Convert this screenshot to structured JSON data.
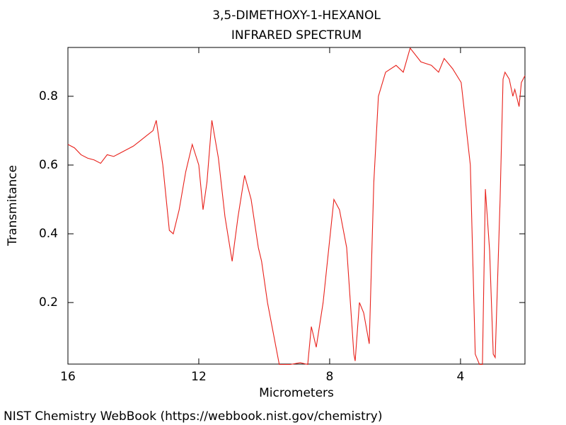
{
  "chart_data": {
    "type": "line",
    "title": "3,5-DIMETHOXY-1-HEXANOL",
    "subtitle": "INFRARED SPECTRUM",
    "x_label": "Micrometers",
    "y_label": "Transmitance",
    "footer": "NIST Chemistry WebBook (https://webbook.nist.gov/chemistry)",
    "xlim": [
      16,
      2.03
    ],
    "ylim": [
      0.021,
      0.942
    ],
    "xticks": [
      16,
      12,
      8,
      4
    ],
    "yticks": [
      0.2,
      0.4,
      0.6,
      0.8
    ],
    "series": [
      {
        "color": "#e8201a",
        "x": [
          16.0,
          15.8,
          15.6,
          15.4,
          15.2,
          15.0,
          14.8,
          14.6,
          14.4,
          14.2,
          14.0,
          13.8,
          13.6,
          13.4,
          13.3,
          13.1,
          12.9,
          12.78,
          12.6,
          12.4,
          12.2,
          12.0,
          11.87,
          11.75,
          11.6,
          11.4,
          11.2,
          10.98,
          10.8,
          10.6,
          10.4,
          10.18,
          10.08,
          9.9,
          9.7,
          9.54,
          9.2,
          8.9,
          8.67,
          8.56,
          8.41,
          8.2,
          7.87,
          7.7,
          7.48,
          7.26,
          7.22,
          7.09,
          6.96,
          6.79,
          6.65,
          6.51,
          6.29,
          5.97,
          5.75,
          5.54,
          5.21,
          4.89,
          4.67,
          4.5,
          4.24,
          3.98,
          3.7,
          3.55,
          3.42,
          3.33,
          3.24,
          3.11,
          3.0,
          2.94,
          2.79,
          2.7,
          2.64,
          2.51,
          2.4,
          2.34,
          2.21,
          2.14,
          2.03
        ],
        "values": [
          0.66,
          0.65,
          0.63,
          0.62,
          0.615,
          0.605,
          0.63,
          0.625,
          0.635,
          0.645,
          0.655,
          0.67,
          0.685,
          0.7,
          0.73,
          0.6,
          0.41,
          0.4,
          0.47,
          0.58,
          0.66,
          0.6,
          0.47,
          0.55,
          0.73,
          0.62,
          0.45,
          0.32,
          0.45,
          0.57,
          0.5,
          0.36,
          0.32,
          0.2,
          0.1,
          0.02,
          0.02,
          0.025,
          0.02,
          0.13,
          0.07,
          0.2,
          0.5,
          0.47,
          0.36,
          0.05,
          0.03,
          0.2,
          0.17,
          0.08,
          0.55,
          0.8,
          0.87,
          0.89,
          0.87,
          0.94,
          0.9,
          0.89,
          0.87,
          0.91,
          0.88,
          0.84,
          0.6,
          0.05,
          0.02,
          0.02,
          0.53,
          0.35,
          0.05,
          0.04,
          0.5,
          0.85,
          0.87,
          0.85,
          0.8,
          0.82,
          0.77,
          0.84,
          0.86
        ]
      }
    ]
  }
}
